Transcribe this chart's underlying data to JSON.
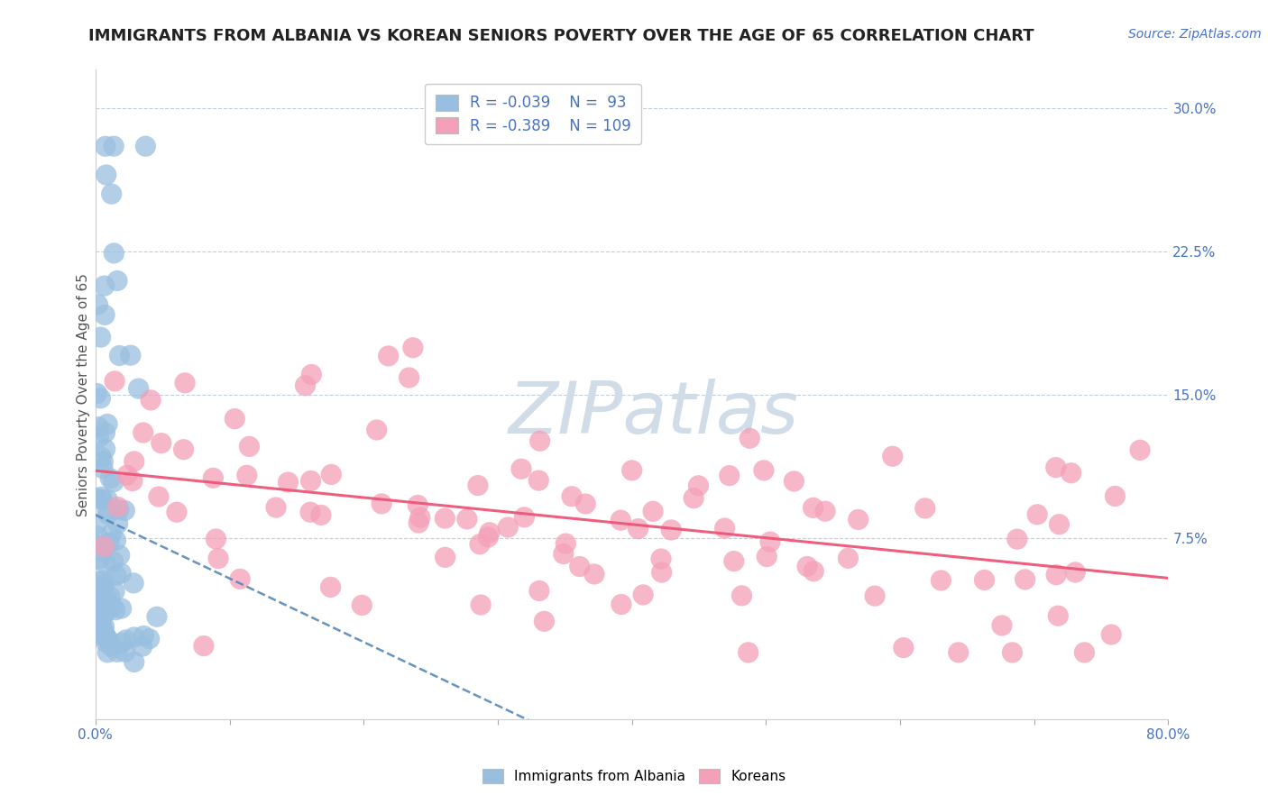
{
  "title": "IMMIGRANTS FROM ALBANIA VS KOREAN SENIORS POVERTY OVER THE AGE OF 65 CORRELATION CHART",
  "source_text": "Source: ZipAtlas.com",
  "ylabel": "Seniors Poverty Over the Age of 65",
  "xlim": [
    0.0,
    0.8
  ],
  "ylim": [
    -0.02,
    0.32
  ],
  "yticks_right": [
    0.075,
    0.15,
    0.225,
    0.3
  ],
  "yticks_right_labels": [
    "7.5%",
    "15.0%",
    "22.5%",
    "30.0%"
  ],
  "albania_color": "#99bfe0",
  "korean_color": "#f4a0b8",
  "albania_line_color": "#5588bb",
  "korean_line_color": "#ee5577",
  "watermark_color": "#d0dce8",
  "background_color": "#ffffff",
  "title_fontsize": 13,
  "axis_label_fontsize": 11,
  "tick_fontsize": 11
}
